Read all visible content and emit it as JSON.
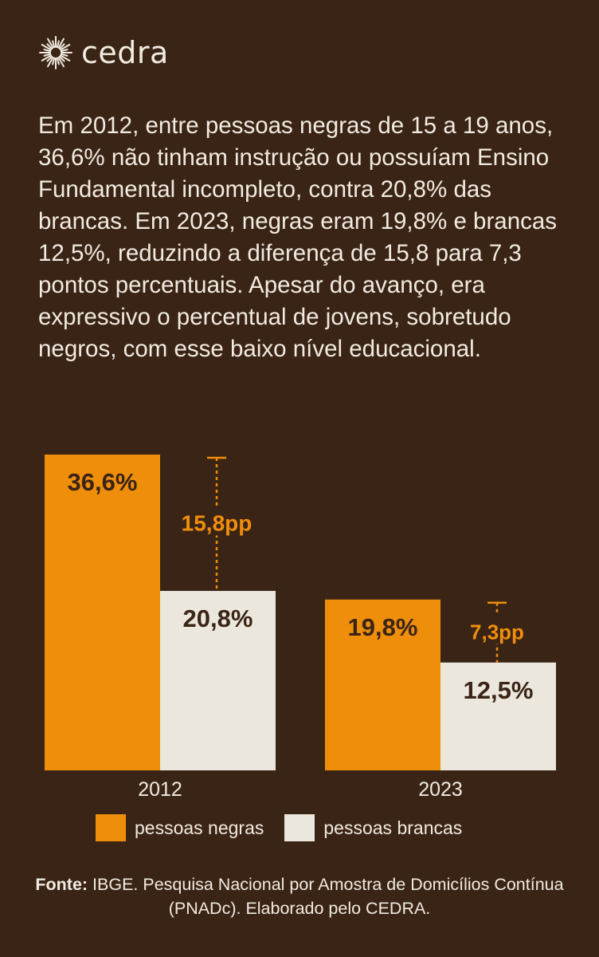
{
  "brand": {
    "name": "cedra",
    "icon": "sunburst-logo-icon"
  },
  "paragraph": "Em 2012, entre pessoas negras de 15 a 19 anos, 36,6% não tinham instrução ou possuíam Ensino Fundamental incompleto, contra 20,8% das brancas. Em 2023, negras eram 19,8% e brancas 12,5%, reduzindo a diferença de 15,8 para 7,3 pontos percentuais. Apesar do avanço, era expressivo o percentual de jovens, sobretudo negros, com esse baixo nível educacional.",
  "colors": {
    "background": "#3a2416",
    "negras": "#ef8e0b",
    "brancas": "#ece7dd",
    "text_light": "#f1ebe1",
    "text_dark": "#3a2416",
    "gap_label": "#ef8e0b"
  },
  "chart_data": {
    "type": "bar",
    "categories": [
      "2012",
      "2023"
    ],
    "series": [
      {
        "name": "pessoas negras",
        "values": [
          36.6,
          19.8
        ],
        "labels": [
          "36,6%",
          "19,8%"
        ]
      },
      {
        "name": "pessoas brancas",
        "values": [
          20.8,
          12.5
        ],
        "labels": [
          "20,8%",
          "12,5%"
        ]
      }
    ],
    "gaps": [
      {
        "value": 15.8,
        "label": "15,8pp"
      },
      {
        "value": 7.3,
        "label": "7,3pp"
      }
    ],
    "title": "",
    "xlabel": "",
    "ylabel": "",
    "ylim": [
      0,
      36.6
    ],
    "grid": false,
    "legend_position": "bottom"
  },
  "source": {
    "prefix": "Fonte:",
    "text": " IBGE. Pesquisa Nacional por Amostra de Domicílios Contínua (PNADc). Elaborado pelo CEDRA."
  }
}
